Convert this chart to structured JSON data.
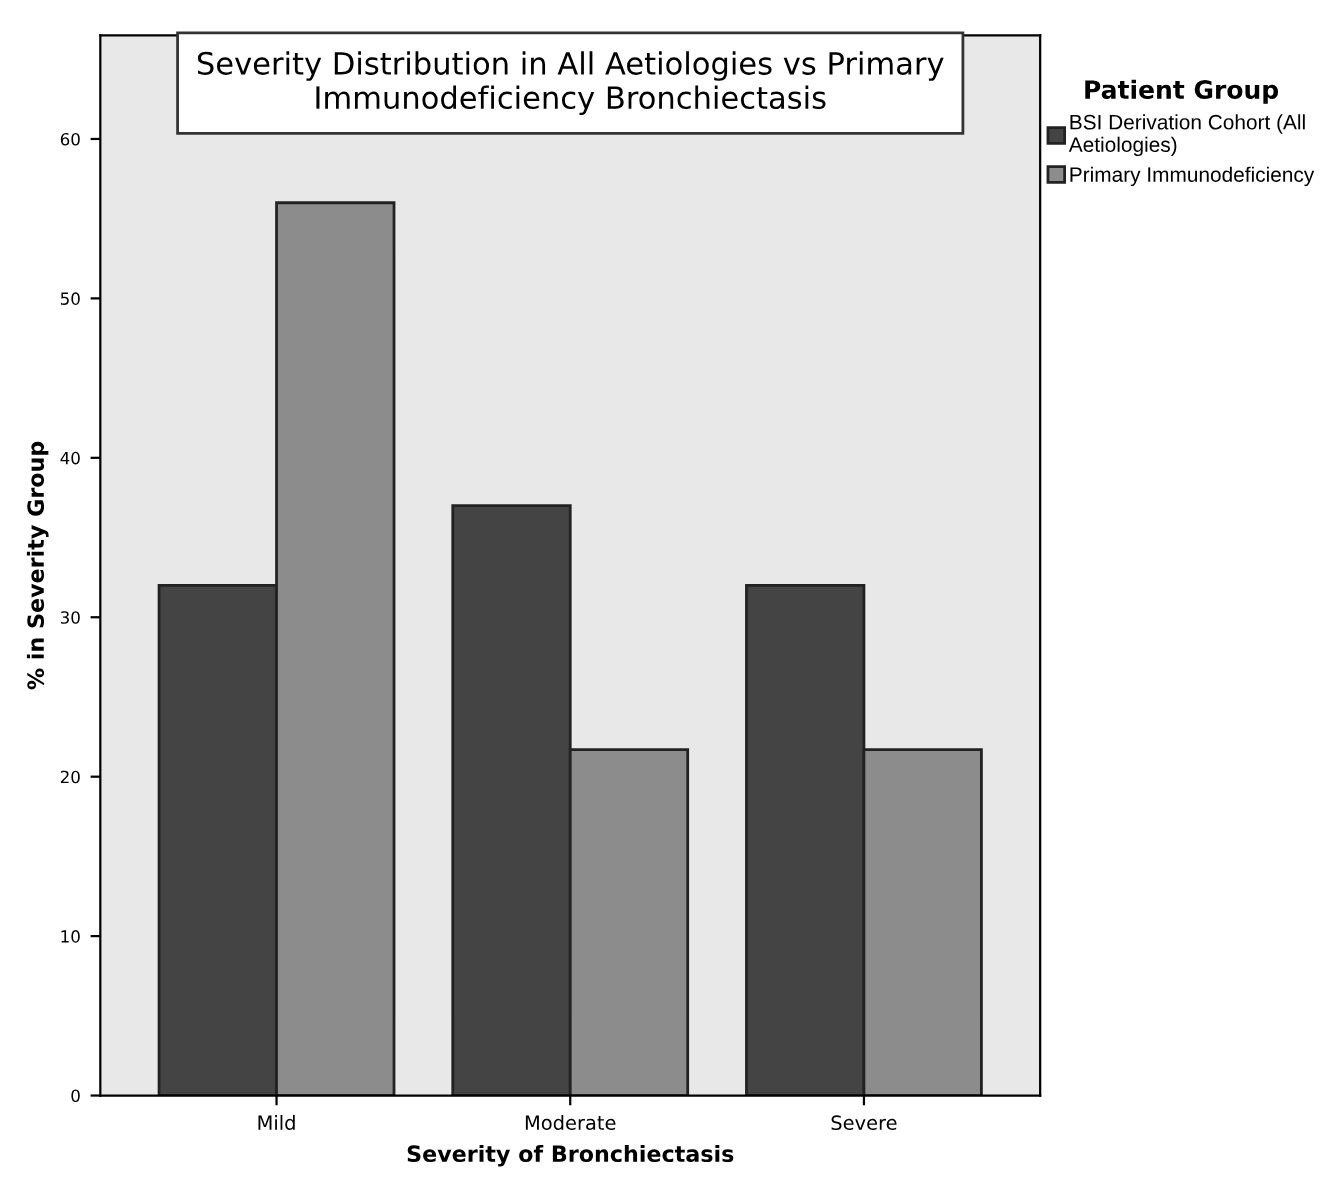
{
  "chart_data": {
    "type": "bar",
    "title": "Severity Distribution in All Aetiologies vs Primary\nImmunodeficiency Bronchiectasis",
    "xlabel": "Severity of Bronchiectasis",
    "ylabel": "% in Severity Group",
    "legend_title": "Patient Group",
    "categories": [
      "Mild",
      "Moderate",
      "Severe"
    ],
    "series": [
      {
        "name": "BSI Derivation Cohort (All\nAetiologies)",
        "color": "#444444",
        "values": [
          32,
          37,
          32
        ]
      },
      {
        "name": "Primary Immunodeficiency",
        "color": "#8c8c8c",
        "values": [
          56,
          21.7,
          21.7
        ]
      }
    ],
    "ylim": [
      0,
      66.5
    ],
    "yticks": [
      0,
      10,
      20,
      30,
      40,
      50,
      60
    ],
    "grid": false,
    "legend": "top right"
  }
}
